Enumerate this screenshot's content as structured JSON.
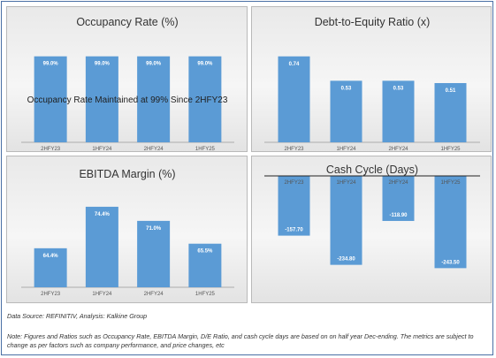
{
  "colors": {
    "bar": "#5b9bd5",
    "panel_border": "#b9b9b9",
    "frame": "#4a6fa5"
  },
  "chart_data": [
    {
      "type": "bar",
      "title": "Occupancy Rate (%)",
      "categories": [
        "2HFY23",
        "1HFY24",
        "2HFY24",
        "1HFY25"
      ],
      "values": [
        99.0,
        99.0,
        99.0,
        99.0
      ],
      "labels": [
        "99.0%",
        "99.0%",
        "99.0%",
        "99.0%"
      ],
      "annotation": "Occupancy Rate Maintained at 99% Since 2HFY23",
      "ylim": [
        0,
        115
      ],
      "legend": "none"
    },
    {
      "type": "bar",
      "title": "Debt-to-Equity Ratio (x)",
      "categories": [
        "2HFY23",
        "1HFY24",
        "2HFY24",
        "1HFY25"
      ],
      "values": [
        0.74,
        0.53,
        0.53,
        0.51
      ],
      "labels": [
        "0.74",
        "0.53",
        "0.53",
        "0.51"
      ],
      "ylim": [
        0,
        0.86
      ],
      "legend": "none"
    },
    {
      "type": "bar",
      "title": "EBITDA Margin (%)",
      "categories": [
        "2HFY23",
        "1HFY24",
        "2HFY24",
        "1HFY25"
      ],
      "values": [
        64.4,
        74.4,
        71.0,
        65.5
      ],
      "labels": [
        "64.4%",
        "74.4%",
        "71.0%",
        "65.5%"
      ],
      "ylim": [
        55,
        78
      ],
      "legend": "none"
    },
    {
      "type": "bar",
      "title": "Cash Cycle (Days)",
      "categories": [
        "2HFY23",
        "1HFY24",
        "2HFY24",
        "1HFY25"
      ],
      "values": [
        -157.7,
        -234.8,
        -118.9,
        -243.5
      ],
      "labels": [
        "-157.70",
        "-234.80",
        "-118.90",
        "-243.50"
      ],
      "ylim": [
        -280,
        0
      ],
      "legend": "none"
    }
  ],
  "footer": {
    "source": "Data Source: REFINITIV, Analysis: Kalkine Group",
    "note": "Note: Figures and Ratios such as Occupancy Rate, EBITDA Margin, D/E Ratio, and cash cycle days are based on on half year Dec-ending. The metrics are subject to change as per factors such as company performance, and price changes, etc"
  }
}
